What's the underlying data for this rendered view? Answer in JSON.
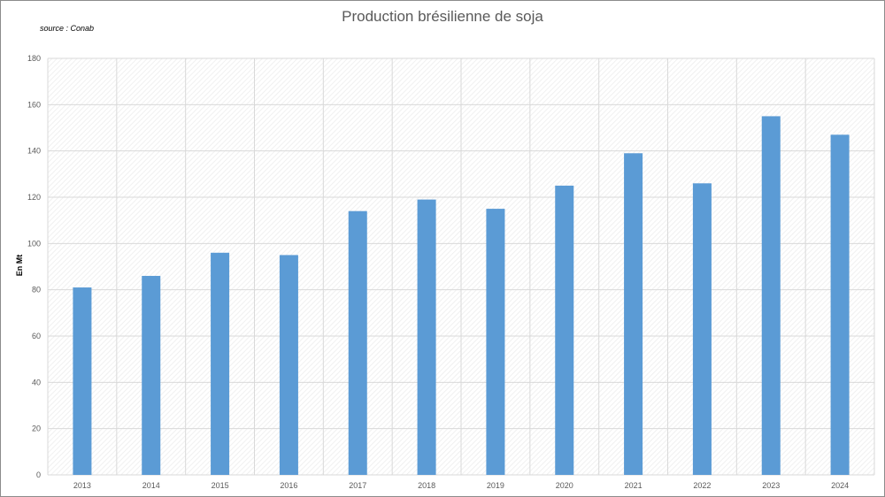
{
  "chart_data": {
    "type": "bar",
    "title": "Production brésilienne de soja",
    "source_note": "source : Conab",
    "xlabel": "",
    "ylabel": "En Mt",
    "categories": [
      "2013",
      "2014",
      "2015",
      "2016",
      "2017",
      "2018",
      "2019",
      "2020",
      "2021",
      "2022",
      "2023",
      "2024"
    ],
    "values": [
      81,
      86,
      96,
      95,
      114,
      119,
      115,
      125,
      139,
      126,
      155,
      147
    ],
    "ylim": [
      0,
      180
    ],
    "yticks": [
      0,
      20,
      40,
      60,
      80,
      100,
      120,
      140,
      160,
      180
    ],
    "grid": true,
    "legend": "none",
    "bar_color": "#5b9bd5",
    "grid_color": "#d9d9d9"
  }
}
